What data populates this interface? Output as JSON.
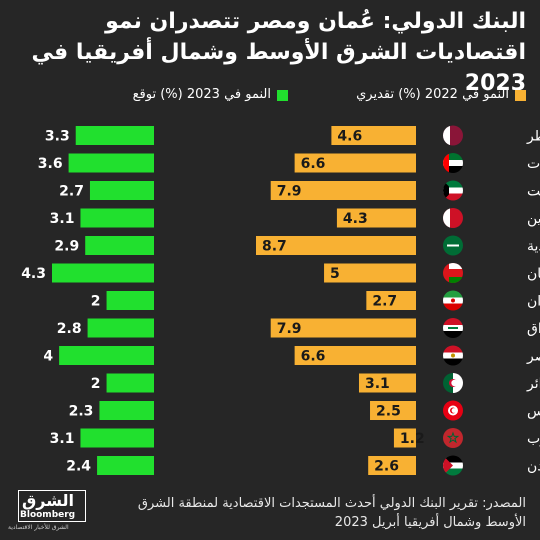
{
  "title": "البنك الدولي: عُمان ومصر تتصدران نمو اقتصاديات الشرق الأوسط وشمال أفريقيا في 2023",
  "legend": {
    "growth_2022": "النمو في 2022 (%) تقديري",
    "growth_2023": "النمو في 2023 (%) توقع"
  },
  "colors": {
    "background": "#262626",
    "bar_2022": "#f8b133",
    "bar_2023": "#21e02e",
    "text": "#ffffff"
  },
  "chart_data": {
    "type": "bar",
    "orientation": "horizontal",
    "categories": [
      "قطر",
      "الإمارات",
      "الكويت",
      "البحرين",
      "السعودية",
      "عُمان",
      "إيران",
      "العراق",
      "مصر",
      "الجزائر",
      "تونس",
      "المغرب",
      "الأردن"
    ],
    "series": [
      {
        "name": "النمو في 2022 (%) تقديري",
        "values": [
          4.6,
          6.6,
          7.9,
          4.3,
          8.7,
          5,
          2.7,
          7.9,
          6.6,
          3.1,
          2.5,
          1.2,
          2.6
        ]
      },
      {
        "name": "النمو في 2023 (%) توقع",
        "values": [
          3.3,
          3.6,
          2.7,
          3.1,
          2.9,
          4.3,
          2,
          2.8,
          4,
          2,
          2.3,
          3.1,
          2.4
        ]
      }
    ],
    "flags": [
      "qatar-flag-icon",
      "uae-flag-icon",
      "kuwait-flag-icon",
      "bahrain-flag-icon",
      "saudi-flag-icon",
      "oman-flag-icon",
      "iran-flag-icon",
      "iraq-flag-icon",
      "egypt-flag-icon",
      "algeria-flag-icon",
      "tunisia-flag-icon",
      "morocco-flag-icon",
      "jordan-flag-icon"
    ],
    "value_labels": "inside-bar-end",
    "grid": false,
    "legend_position": "top"
  },
  "logo": {
    "brand_ar": "الشرق",
    "brand_en": "Bloomberg",
    "tagline": "الشرق للأخبار الاقتصادية"
  },
  "source": "المصدر: تقرير البنك الدولي أحدث المستجدات الاقتصادية لمنطقة الشرق الأوسط وشمال أفريقيا أبريل 2023"
}
